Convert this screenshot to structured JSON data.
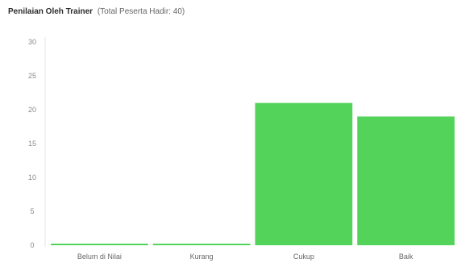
{
  "chart_data": {
    "type": "bar",
    "title": "Penilaian Oleh Trainer",
    "subtitle": "(Total Peserta Hadir: 40)",
    "categories": [
      "Belum di Nilai",
      "Kurang",
      "Cukup",
      "Baik"
    ],
    "values": [
      0,
      0,
      21,
      19
    ],
    "ylim": [
      0,
      30
    ],
    "yticks": [
      0,
      5,
      10,
      15,
      20,
      25,
      30
    ],
    "grid": false,
    "bar_color": "#54d35a"
  }
}
